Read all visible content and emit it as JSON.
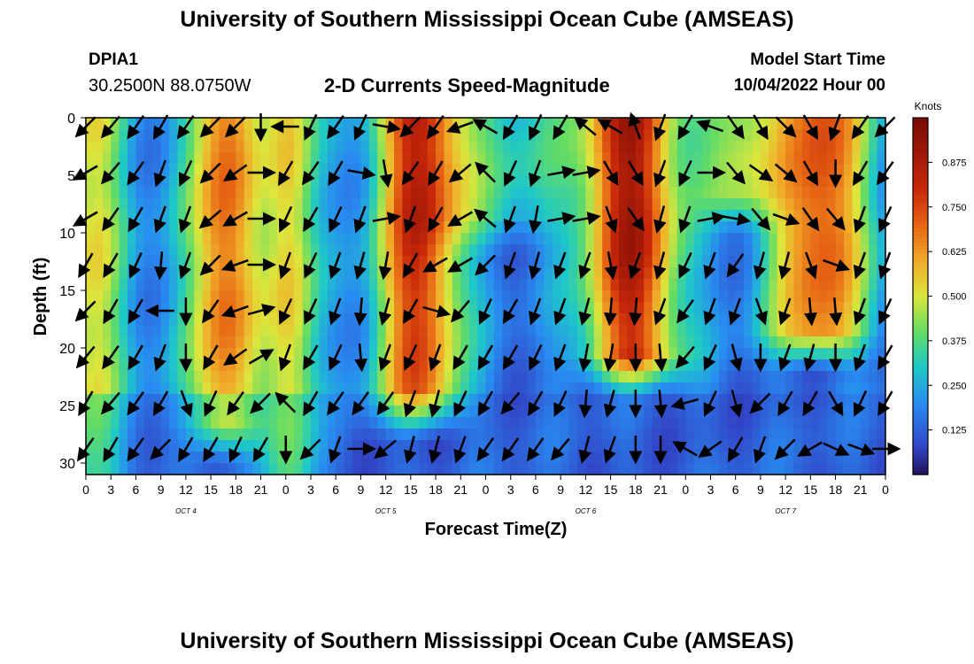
{
  "header": {
    "title": "University of Southern Mississippi Ocean Cube (AMSEAS)",
    "station": "DPIA1",
    "coords": "30.2500N  88.0750W",
    "subtitle": "2-D Currents Speed-Magnitude",
    "model_start_label": "Model Start Time",
    "model_start_value": "10/04/2022 Hour 00"
  },
  "footer": {
    "title": "University of Southern Mississippi Ocean Cube (AMSEAS)"
  },
  "chart_data": {
    "type": "heatmap",
    "title": "2-D Currents Speed-Magnitude",
    "xlabel": "Forecast Time(Z)",
    "ylabel": "Depth (ft)",
    "xlim": [
      0,
      96
    ],
    "ylim": [
      0,
      31
    ],
    "x_tick_labels": [
      "0",
      "3",
      "6",
      "9",
      "12",
      "15",
      "18",
      "21",
      "0",
      "3",
      "6",
      "9",
      "12",
      "15",
      "18",
      "21",
      "0",
      "3",
      "6",
      "9",
      "12",
      "15",
      "18",
      "21",
      "0",
      "3",
      "6",
      "9",
      "12",
      "15",
      "18",
      "21",
      "0"
    ],
    "y_ticks": [
      0,
      5,
      10,
      15,
      20,
      25,
      30
    ],
    "day_labels": [
      {
        "label": "OCT 4",
        "hour": 12
      },
      {
        "label": "OCT 5",
        "hour": 36
      },
      {
        "label": "OCT 6",
        "hour": 60
      },
      {
        "label": "OCT 7",
        "hour": 84
      }
    ],
    "colorbar": {
      "unit": "Knots",
      "range": [
        0,
        1.0
      ],
      "ticks": [
        "0.125",
        "0.250",
        "0.375",
        "0.500",
        "0.625",
        "0.750",
        "0.875"
      ],
      "tick_values": [
        0.125,
        0.25,
        0.375,
        0.5,
        0.625,
        0.75,
        0.875
      ]
    },
    "speed_peaks": [
      {
        "hour": 0.5,
        "speed": 0.48,
        "width": 3.5,
        "max_depth": 31
      },
      {
        "hour": 16.5,
        "speed": 0.7,
        "width": 3.0,
        "max_depth": 26
      },
      {
        "hour": 24.5,
        "speed": 0.55,
        "width": 2.2,
        "max_depth": 31
      },
      {
        "hour": 40.0,
        "speed": 0.78,
        "width": 3.6,
        "max_depth": 24
      },
      {
        "hour": 50.0,
        "speed": 0.32,
        "width": 7.0,
        "max_depth": 8
      },
      {
        "hour": 65.5,
        "speed": 0.85,
        "width": 4.0,
        "max_depth": 20
      },
      {
        "hour": 88.0,
        "speed": 0.74,
        "width": 4.2,
        "max_depth": 18
      },
      {
        "hour": 78.0,
        "speed": 0.45,
        "width": 3.0,
        "max_depth": 6
      }
    ],
    "vector_hours": [
      0,
      3,
      6,
      9,
      12,
      15,
      18,
      21,
      24,
      27,
      30,
      33,
      36,
      39,
      42,
      45,
      48,
      51,
      54,
      57,
      60,
      63,
      66,
      69,
      72,
      75,
      78,
      81,
      84,
      87,
      90,
      93,
      96
    ],
    "vector_depths": [
      0,
      4,
      8,
      12,
      16,
      20,
      24,
      28
    ],
    "vector_directions_deg": [
      [
        225,
        240,
        240,
        210,
        225,
        220,
        210,
        215
      ],
      [
        220,
        220,
        215,
        210,
        210,
        215,
        220,
        210
      ],
      [
        215,
        215,
        210,
        205,
        210,
        210,
        215,
        215
      ],
      [
        210,
        200,
        200,
        185,
        270,
        200,
        210,
        225
      ],
      [
        215,
        205,
        200,
        200,
        180,
        180,
        160,
        210
      ],
      [
        225,
        225,
        230,
        225,
        215,
        210,
        205,
        210
      ],
      [
        225,
        235,
        240,
        250,
        250,
        235,
        215,
        205
      ],
      [
        180,
        90,
        90,
        90,
        75,
        60,
        225,
        210
      ],
      [
        270,
        210,
        205,
        200,
        205,
        200,
        315,
        180
      ],
      [
        205,
        215,
        210,
        205,
        205,
        210,
        210,
        225
      ],
      [
        215,
        210,
        205,
        200,
        200,
        205,
        215,
        200
      ],
      [
        205,
        100,
        200,
        195,
        185,
        175,
        215,
        90
      ],
      [
        100,
        170,
        80,
        190,
        195,
        200,
        215,
        230
      ],
      [
        225,
        215,
        200,
        210,
        210,
        205,
        200,
        195
      ],
      [
        215,
        210,
        210,
        240,
        105,
        200,
        195,
        195
      ],
      [
        250,
        230,
        240,
        240,
        220,
        210,
        205,
        200
      ],
      [
        300,
        315,
        310,
        225,
        205,
        210,
        210,
        215
      ],
      [
        210,
        205,
        200,
        200,
        210,
        210,
        220,
        215
      ],
      [
        205,
        200,
        190,
        195,
        200,
        205,
        210,
        215
      ],
      [
        210,
        80,
        80,
        200,
        200,
        200,
        205,
        220
      ],
      [
        310,
        80,
        80,
        200,
        195,
        190,
        185,
        195
      ],
      [
        300,
        150,
        160,
        170,
        185,
        190,
        195,
        200
      ],
      [
        340,
        150,
        145,
        200,
        185,
        180,
        180,
        180
      ],
      [
        200,
        200,
        195,
        195,
        200,
        175,
        175,
        180
      ],
      [
        210,
        205,
        200,
        205,
        215,
        220,
        255,
        300
      ],
      [
        290,
        90,
        80,
        200,
        200,
        205,
        205,
        235
      ],
      [
        145,
        140,
        100,
        215,
        200,
        165,
        165,
        210
      ],
      [
        150,
        125,
        140,
        195,
        160,
        180,
        225,
        200
      ],
      [
        135,
        130,
        110,
        195,
        200,
        200,
        210,
        225
      ],
      [
        150,
        150,
        145,
        160,
        175,
        195,
        210,
        240
      ],
      [
        200,
        180,
        140,
        110,
        175,
        180,
        150,
        115
      ],
      [
        215,
        210,
        200,
        200,
        200,
        200,
        205,
        110
      ],
      [
        225,
        215,
        205,
        200,
        205,
        210,
        210,
        90
      ]
    ]
  }
}
